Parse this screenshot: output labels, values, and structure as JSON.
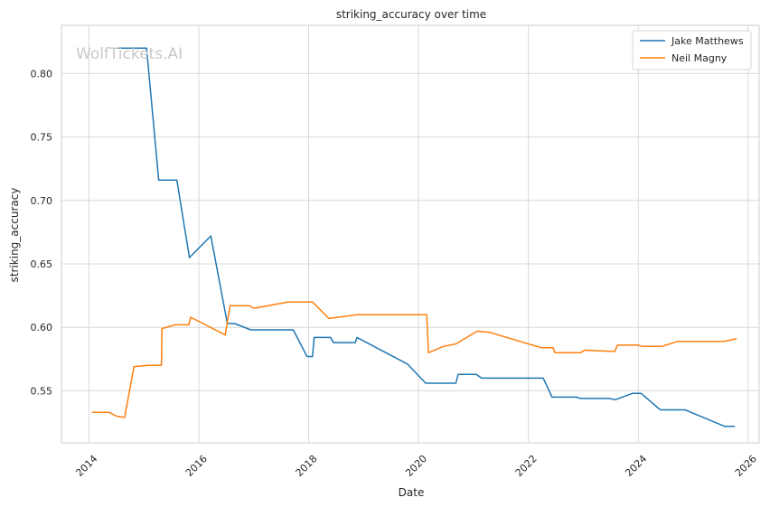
{
  "watermark": "WolfTickets.AI",
  "chart_data": {
    "type": "line",
    "title": "striking_accuracy over time",
    "xlabel": "Date",
    "ylabel": "striking_accuracy",
    "xlim": [
      2013.5,
      2026.2
    ],
    "ylim": [
      0.509,
      0.838
    ],
    "x_ticks": [
      2014,
      2016,
      2018,
      2020,
      2022,
      2024,
      2026
    ],
    "x_tick_labels": [
      "2014",
      "2016",
      "2018",
      "2020",
      "2022",
      "2024",
      "2026"
    ],
    "y_ticks": [
      0.55,
      0.6,
      0.65,
      0.7,
      0.75,
      0.8
    ],
    "y_tick_labels": [
      "0.55",
      "0.60",
      "0.65",
      "0.70",
      "0.75",
      "0.80"
    ],
    "grid": true,
    "legend_position": "top-right",
    "series": [
      {
        "name": "Jake Matthews",
        "color": "#1f77b4",
        "points": [
          [
            2014.47,
            0.82
          ],
          [
            2015.05,
            0.82
          ],
          [
            2015.27,
            0.716
          ],
          [
            2015.6,
            0.716
          ],
          [
            2015.83,
            0.655
          ],
          [
            2016.22,
            0.672
          ],
          [
            2016.52,
            0.603
          ],
          [
            2016.65,
            0.603
          ],
          [
            2016.95,
            0.598
          ],
          [
            2017.72,
            0.598
          ],
          [
            2017.97,
            0.577
          ],
          [
            2018.07,
            0.577
          ],
          [
            2018.1,
            0.592
          ],
          [
            2018.4,
            0.592
          ],
          [
            2018.45,
            0.588
          ],
          [
            2018.85,
            0.588
          ],
          [
            2018.88,
            0.592
          ],
          [
            2019.8,
            0.571
          ],
          [
            2020.13,
            0.556
          ],
          [
            2020.68,
            0.556
          ],
          [
            2020.72,
            0.563
          ],
          [
            2021.05,
            0.563
          ],
          [
            2021.15,
            0.56
          ],
          [
            2022.27,
            0.56
          ],
          [
            2022.43,
            0.545
          ],
          [
            2022.87,
            0.545
          ],
          [
            2022.95,
            0.544
          ],
          [
            2023.47,
            0.544
          ],
          [
            2023.58,
            0.543
          ],
          [
            2023.9,
            0.548
          ],
          [
            2024.05,
            0.548
          ],
          [
            2024.4,
            0.535
          ],
          [
            2024.85,
            0.535
          ],
          [
            2025.57,
            0.522
          ],
          [
            2025.75,
            0.522
          ]
        ]
      },
      {
        "name": "Neil Magny",
        "color": "#ff7f0e",
        "points": [
          [
            2014.07,
            0.533
          ],
          [
            2014.37,
            0.533
          ],
          [
            2014.5,
            0.53
          ],
          [
            2014.65,
            0.529
          ],
          [
            2014.82,
            0.569
          ],
          [
            2015.07,
            0.57
          ],
          [
            2015.32,
            0.57
          ],
          [
            2015.33,
            0.599
          ],
          [
            2015.57,
            0.602
          ],
          [
            2015.82,
            0.602
          ],
          [
            2015.85,
            0.608
          ],
          [
            2016.48,
            0.594
          ],
          [
            2016.57,
            0.617
          ],
          [
            2016.92,
            0.617
          ],
          [
            2017.0,
            0.615
          ],
          [
            2017.63,
            0.62
          ],
          [
            2018.07,
            0.62
          ],
          [
            2018.37,
            0.607
          ],
          [
            2018.88,
            0.61
          ],
          [
            2020.15,
            0.61
          ],
          [
            2020.18,
            0.58
          ],
          [
            2020.45,
            0.585
          ],
          [
            2020.68,
            0.587
          ],
          [
            2021.07,
            0.597
          ],
          [
            2021.3,
            0.596
          ],
          [
            2022.23,
            0.584
          ],
          [
            2022.45,
            0.584
          ],
          [
            2022.48,
            0.58
          ],
          [
            2022.95,
            0.58
          ],
          [
            2023.02,
            0.582
          ],
          [
            2023.57,
            0.581
          ],
          [
            2023.62,
            0.586
          ],
          [
            2024.0,
            0.586
          ],
          [
            2024.07,
            0.585
          ],
          [
            2024.43,
            0.585
          ],
          [
            2024.72,
            0.589
          ],
          [
            2025.57,
            0.589
          ],
          [
            2025.78,
            0.591
          ]
        ]
      }
    ]
  }
}
